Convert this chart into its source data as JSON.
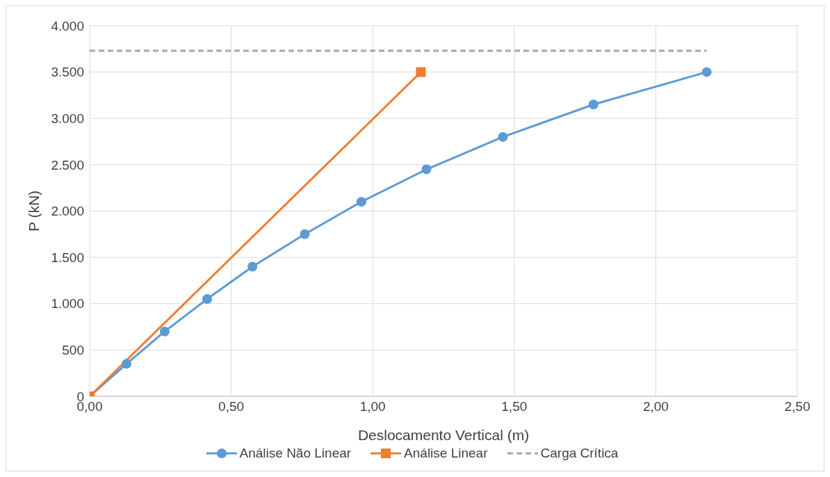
{
  "chart_data": {
    "type": "line",
    "xlabel": "Deslocamento Vertical (m)",
    "ylabel": "P (kN)",
    "xlim": [
      0,
      2.5
    ],
    "xticks": [
      {
        "value": 0,
        "label": "0,00"
      },
      {
        "value": 0.5,
        "label": "0,50"
      },
      {
        "value": 1,
        "label": "1,00"
      },
      {
        "value": 1.5,
        "label": "1,50"
      },
      {
        "value": 2,
        "label": "2,00"
      },
      {
        "value": 2.5,
        "label": "2,50"
      }
    ],
    "ylim": [
      0,
      4000
    ],
    "yticks": [
      {
        "value": 0,
        "label": "0"
      },
      {
        "value": 500,
        "label": "500"
      },
      {
        "value": 1000,
        "label": "1.000"
      },
      {
        "value": 1500,
        "label": "1.500"
      },
      {
        "value": 2000,
        "label": "2.000"
      },
      {
        "value": 2500,
        "label": "2.500"
      },
      {
        "value": 3000,
        "label": "3.000"
      },
      {
        "value": 3500,
        "label": "3.500"
      },
      {
        "value": 4000,
        "label": "4.000"
      }
    ],
    "grid": true,
    "legend": "bottom",
    "series": [
      {
        "name": "Análise Não Linear",
        "color": "#5b9bd5",
        "marker": "circle",
        "line_style": "solid",
        "x": [
          0,
          0.13,
          0.265,
          0.415,
          0.575,
          0.76,
          0.96,
          1.19,
          1.46,
          1.78,
          2.18
        ],
        "values": [
          0,
          350,
          700,
          1050,
          1400,
          1750,
          2100,
          2450,
          2800,
          3150,
          3500
        ]
      },
      {
        "name": "Análise Linear",
        "color": "#ed7d31",
        "marker": "square",
        "line_style": "solid",
        "x": [
          0,
          1.17
        ],
        "values": [
          0,
          3500
        ]
      },
      {
        "name": "Carga Crítica",
        "color": "#a5a5a5",
        "marker": "none",
        "line_style": "dashed",
        "x": [
          0,
          2.18
        ],
        "values": [
          3730,
          3730
        ]
      }
    ]
  }
}
